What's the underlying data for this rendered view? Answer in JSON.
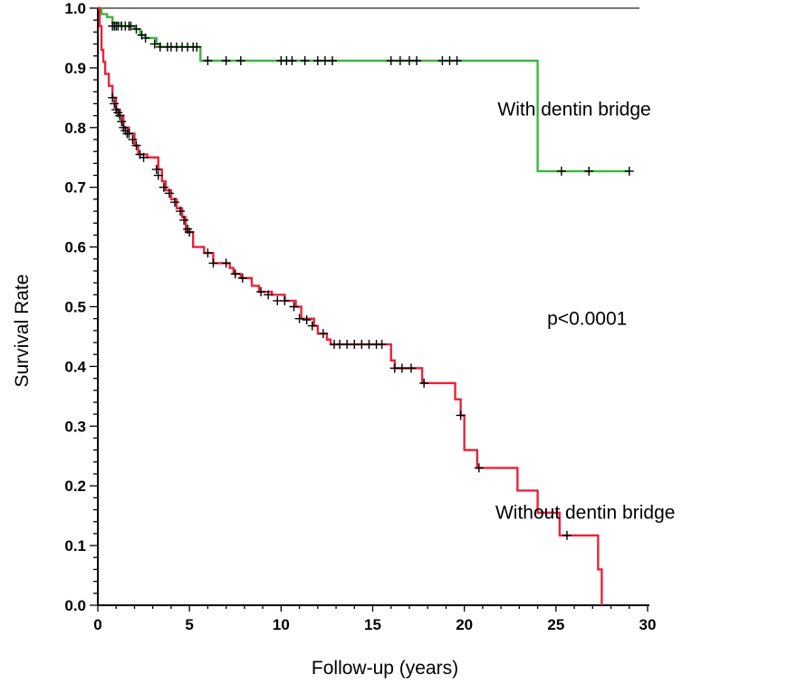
{
  "chart_data": {
    "type": "line",
    "title": "",
    "xlabel": "Follow-up (years)",
    "ylabel": "Survival Rate",
    "xlim": [
      0,
      30
    ],
    "ylim": [
      0,
      1.0
    ],
    "x_ticks": [
      0,
      5,
      10,
      15,
      20,
      25,
      30
    ],
    "y_ticks": [
      0.0,
      0.1,
      0.2,
      0.3,
      0.4,
      0.5,
      0.6,
      0.7,
      0.8,
      0.9,
      1.0
    ],
    "x_tick_labels": [
      "0",
      "5",
      "10",
      "15",
      "20",
      "25",
      "30"
    ],
    "y_tick_labels": [
      "0.0",
      "0.1",
      "0.2",
      "0.3",
      "0.4",
      "0.5",
      "0.6",
      "0.7",
      "0.8",
      "0.9",
      "1.0"
    ],
    "grid": false,
    "annotations": [
      {
        "text": "With dentin bridge",
        "x": 26,
        "y": 0.82
      },
      {
        "text": "p<0.0001",
        "x": 26.7,
        "y": 0.47
      },
      {
        "text": "Without dentin bridge",
        "x": 26.6,
        "y": 0.145
      }
    ],
    "series": [
      {
        "color": "#3cb83c",
        "steps": [
          [
            0,
            1.0
          ],
          [
            0.2,
            0.99
          ],
          [
            0.5,
            0.985
          ],
          [
            0.8,
            0.975
          ],
          [
            1.2,
            0.97
          ],
          [
            2.0,
            0.965
          ],
          [
            2.3,
            0.955
          ],
          [
            2.6,
            0.95
          ],
          [
            3.2,
            0.94
          ],
          [
            3.4,
            0.935
          ],
          [
            5.6,
            0.912
          ],
          [
            24.0,
            0.912
          ],
          [
            24.0,
            0.727
          ],
          [
            29.0,
            0.727
          ]
        ],
        "censored": [
          [
            0.8,
            0.97
          ],
          [
            0.9,
            0.97
          ],
          [
            1.0,
            0.97
          ],
          [
            1.1,
            0.97
          ],
          [
            1.3,
            0.97
          ],
          [
            1.5,
            0.97
          ],
          [
            1.7,
            0.97
          ],
          [
            1.8,
            0.97
          ],
          [
            2.1,
            0.965
          ],
          [
            2.4,
            0.955
          ],
          [
            2.6,
            0.95
          ],
          [
            3.1,
            0.94
          ],
          [
            3.4,
            0.935
          ],
          [
            3.8,
            0.935
          ],
          [
            4.0,
            0.935
          ],
          [
            4.3,
            0.935
          ],
          [
            4.6,
            0.935
          ],
          [
            4.9,
            0.935
          ],
          [
            5.2,
            0.935
          ],
          [
            5.4,
            0.935
          ],
          [
            6.0,
            0.912
          ],
          [
            7.0,
            0.912
          ],
          [
            7.8,
            0.912
          ],
          [
            10.0,
            0.912
          ],
          [
            10.3,
            0.912
          ],
          [
            10.6,
            0.912
          ],
          [
            11.3,
            0.912
          ],
          [
            12.0,
            0.912
          ],
          [
            12.4,
            0.912
          ],
          [
            12.8,
            0.912
          ],
          [
            16.0,
            0.912
          ],
          [
            16.5,
            0.912
          ],
          [
            17.0,
            0.912
          ],
          [
            17.4,
            0.912
          ],
          [
            18.8,
            0.912
          ],
          [
            19.2,
            0.912
          ],
          [
            19.6,
            0.912
          ],
          [
            25.3,
            0.727
          ],
          [
            26.8,
            0.727
          ],
          [
            29.0,
            0.727
          ]
        ]
      },
      {
        "color": "#e8243a",
        "steps": [
          [
            0,
            1.0
          ],
          [
            0.1,
            0.97
          ],
          [
            0.2,
            0.93
          ],
          [
            0.3,
            0.91
          ],
          [
            0.4,
            0.89
          ],
          [
            0.6,
            0.87
          ],
          [
            0.8,
            0.85
          ],
          [
            1.0,
            0.83
          ],
          [
            1.2,
            0.82
          ],
          [
            1.4,
            0.8
          ],
          [
            1.7,
            0.79
          ],
          [
            2.0,
            0.77
          ],
          [
            2.2,
            0.755
          ],
          [
            2.7,
            0.75
          ],
          [
            3.3,
            0.73
          ],
          [
            3.5,
            0.71
          ],
          [
            3.7,
            0.695
          ],
          [
            4.0,
            0.68
          ],
          [
            4.3,
            0.665
          ],
          [
            4.6,
            0.65
          ],
          [
            4.8,
            0.625
          ],
          [
            5.2,
            0.6
          ],
          [
            5.8,
            0.59
          ],
          [
            6.3,
            0.573
          ],
          [
            7.2,
            0.565
          ],
          [
            7.4,
            0.555
          ],
          [
            7.8,
            0.548
          ],
          [
            8.4,
            0.535
          ],
          [
            8.8,
            0.525
          ],
          [
            9.5,
            0.52
          ],
          [
            10.2,
            0.51
          ],
          [
            10.8,
            0.5
          ],
          [
            11.1,
            0.48
          ],
          [
            11.8,
            0.468
          ],
          [
            12.0,
            0.455
          ],
          [
            12.5,
            0.445
          ],
          [
            12.7,
            0.437
          ],
          [
            15.8,
            0.437
          ],
          [
            16.0,
            0.41
          ],
          [
            16.2,
            0.397
          ],
          [
            17.7,
            0.372
          ],
          [
            19.5,
            0.345
          ],
          [
            19.8,
            0.318
          ],
          [
            20.0,
            0.26
          ],
          [
            20.7,
            0.23
          ],
          [
            22.9,
            0.192
          ],
          [
            24.0,
            0.155
          ],
          [
            25.2,
            0.117
          ],
          [
            27.3,
            0.06
          ],
          [
            27.5,
            0.0
          ]
        ],
        "censored": [
          [
            0.8,
            0.85
          ],
          [
            0.9,
            0.84
          ],
          [
            1.0,
            0.83
          ],
          [
            1.1,
            0.825
          ],
          [
            1.2,
            0.82
          ],
          [
            1.3,
            0.81
          ],
          [
            1.4,
            0.8
          ],
          [
            1.5,
            0.795
          ],
          [
            1.6,
            0.79
          ],
          [
            1.7,
            0.79
          ],
          [
            1.9,
            0.78
          ],
          [
            2.1,
            0.77
          ],
          [
            2.3,
            0.755
          ],
          [
            2.5,
            0.75
          ],
          [
            3.2,
            0.73
          ],
          [
            3.3,
            0.72
          ],
          [
            3.6,
            0.7
          ],
          [
            3.9,
            0.69
          ],
          [
            4.2,
            0.675
          ],
          [
            4.5,
            0.66
          ],
          [
            4.7,
            0.645
          ],
          [
            4.9,
            0.63
          ],
          [
            5.0,
            0.625
          ],
          [
            6.0,
            0.59
          ],
          [
            6.3,
            0.573
          ],
          [
            7.0,
            0.573
          ],
          [
            7.5,
            0.555
          ],
          [
            7.9,
            0.548
          ],
          [
            8.9,
            0.525
          ],
          [
            9.3,
            0.52
          ],
          [
            9.8,
            0.51
          ],
          [
            10.2,
            0.51
          ],
          [
            10.7,
            0.5
          ],
          [
            11.0,
            0.48
          ],
          [
            11.4,
            0.478
          ],
          [
            11.7,
            0.468
          ],
          [
            12.3,
            0.455
          ],
          [
            12.9,
            0.437
          ],
          [
            13.2,
            0.437
          ],
          [
            13.6,
            0.437
          ],
          [
            14.0,
            0.437
          ],
          [
            14.4,
            0.437
          ],
          [
            14.8,
            0.437
          ],
          [
            15.2,
            0.437
          ],
          [
            15.5,
            0.437
          ],
          [
            16.2,
            0.397
          ],
          [
            16.6,
            0.397
          ],
          [
            17.1,
            0.397
          ],
          [
            17.8,
            0.372
          ],
          [
            19.8,
            0.318
          ],
          [
            20.8,
            0.23
          ],
          [
            25.6,
            0.117
          ]
        ]
      }
    ]
  }
}
